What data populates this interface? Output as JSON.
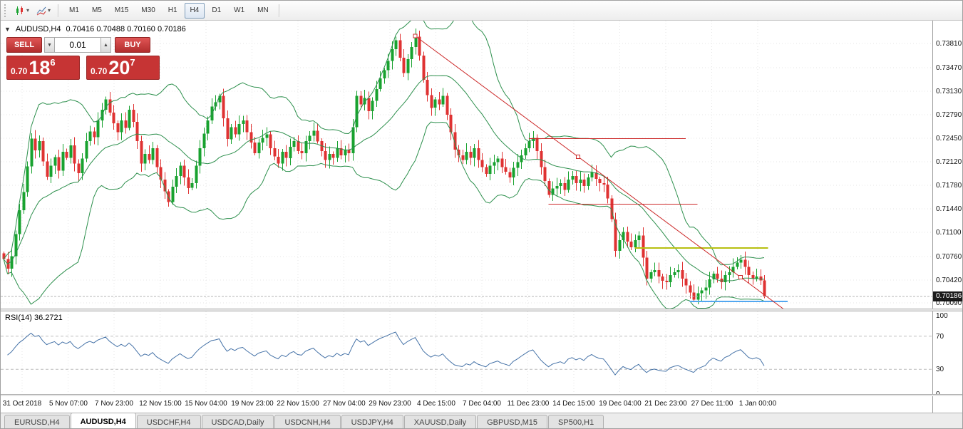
{
  "toolbar": {
    "timeframes": [
      "M1",
      "M5",
      "M15",
      "M30",
      "H1",
      "H4",
      "D1",
      "W1",
      "MN"
    ],
    "active_timeframe": "H4"
  },
  "header": {
    "title": "AUDUSD,H4",
    "ohlc": "0.70416 0.70488 0.70160 0.70186"
  },
  "trade_panel": {
    "sell_label": "SELL",
    "buy_label": "BUY",
    "volume": "0.01",
    "sell_price": {
      "prefix": "0.70",
      "main": "18",
      "sup": "6"
    },
    "buy_price": {
      "prefix": "0.70",
      "main": "20",
      "sup": "7"
    }
  },
  "price_axis": {
    "current_label": "0.70186"
  },
  "rsi": {
    "label": "RSI(14) 36.2721"
  },
  "tabs": [
    {
      "label": "EURUSD,H4",
      "active": false
    },
    {
      "label": "AUDUSD,H4",
      "active": true
    },
    {
      "label": "USDCHF,H4",
      "active": false
    },
    {
      "label": "USDCAD,Daily",
      "active": false
    },
    {
      "label": "USDCNH,H4",
      "active": false
    },
    {
      "label": "USDJPY,H4",
      "active": false
    },
    {
      "label": "XAUUSD,Daily",
      "active": false
    },
    {
      "label": "GBPUSD,M15",
      "active": false
    },
    {
      "label": "SP500,H1",
      "active": false
    }
  ],
  "chart_data": {
    "type": "candlestick",
    "symbol": "AUDUSD",
    "timeframe": "H4",
    "bid": 0.70186,
    "ohlc_last": {
      "open": 0.70416,
      "high": 0.70488,
      "low": 0.7016,
      "close": 0.70186
    },
    "view": {
      "price_top": 0.7414,
      "price_bottom": 0.7001
    },
    "y_ticks": [
      0.7381,
      0.7347,
      0.7313,
      0.7279,
      0.7245,
      0.7212,
      0.7178,
      0.7144,
      0.711,
      0.7076,
      0.7042,
      0.7009
    ],
    "x_labels": [
      "31 Oct 2018",
      "5 Nov 07:00",
      "7 Nov 23:00",
      "12 Nov 15:00",
      "15 Nov 04:00",
      "19 Nov 23:00",
      "22 Nov 15:00",
      "27 Nov 04:00",
      "29 Nov 23:00",
      "4 Dec 15:00",
      "7 Dec 04:00",
      "11 Dec 23:00",
      "14 Dec 15:00",
      "19 Dec 04:00",
      "21 Dec 23:00",
      "27 Dec 11:00",
      "1 Jan 00:00"
    ],
    "closes": [
      0.7072,
      0.7058,
      0.7076,
      0.7108,
      0.7142,
      0.7168,
      0.7205,
      0.7245,
      0.7228,
      0.7241,
      0.7212,
      0.719,
      0.7206,
      0.7218,
      0.7199,
      0.7226,
      0.7217,
      0.7235,
      0.7209,
      0.7195,
      0.7216,
      0.7241,
      0.7255,
      0.7247,
      0.7271,
      0.7286,
      0.7301,
      0.7282,
      0.7267,
      0.7254,
      0.7271,
      0.726,
      0.7286,
      0.7269,
      0.7241,
      0.7209,
      0.7223,
      0.7214,
      0.7231,
      0.7204,
      0.7186,
      0.7169,
      0.7154,
      0.7176,
      0.7191,
      0.7206,
      0.7189,
      0.7174,
      0.7181,
      0.7206,
      0.7231,
      0.7252,
      0.7271,
      0.7291,
      0.7297,
      0.7306,
      0.7274,
      0.7244,
      0.7261,
      0.7251,
      0.7266,
      0.7271,
      0.7254,
      0.7239,
      0.7224,
      0.7239,
      0.7246,
      0.7251,
      0.7231,
      0.7219,
      0.7209,
      0.7226,
      0.7217,
      0.7233,
      0.7241,
      0.7227,
      0.7224,
      0.7241,
      0.7249,
      0.7256,
      0.7241,
      0.7227,
      0.7214,
      0.7223,
      0.7217,
      0.7231,
      0.7221,
      0.7229,
      0.7224,
      0.7261,
      0.7306,
      0.7294,
      0.7303,
      0.7284,
      0.7299,
      0.7316,
      0.7331,
      0.7343,
      0.7356,
      0.7373,
      0.7386,
      0.7361,
      0.7339,
      0.7359,
      0.7376,
      0.7391,
      0.7364,
      0.7329,
      0.7307,
      0.7289,
      0.7301,
      0.7294,
      0.7306,
      0.7279,
      0.7254,
      0.7229,
      0.7221,
      0.7214,
      0.7226,
      0.7217,
      0.7231,
      0.7214,
      0.7204,
      0.7194,
      0.7206,
      0.7211,
      0.7216,
      0.7204,
      0.7197,
      0.7189,
      0.7203,
      0.7211,
      0.7221,
      0.7231,
      0.7241,
      0.7246,
      0.7227,
      0.7204,
      0.7184,
      0.7164,
      0.7173,
      0.7177,
      0.7181,
      0.7171,
      0.7186,
      0.7191,
      0.7181,
      0.7186,
      0.7177,
      0.7189,
      0.7196,
      0.7187,
      0.7181,
      0.7179,
      0.7159,
      0.7129,
      0.7084,
      0.7099,
      0.7111,
      0.7097,
      0.7089,
      0.7099,
      0.7106,
      0.7074,
      0.7044,
      0.7053,
      0.7056,
      0.7047,
      0.7041,
      0.7039,
      0.7049,
      0.7053,
      0.7056,
      0.7044,
      0.7034,
      0.7024,
      0.7014,
      0.7023,
      0.7027,
      0.7031,
      0.7043,
      0.7051,
      0.7044,
      0.7039,
      0.7049,
      0.7053,
      0.7061,
      0.7067,
      0.7071,
      0.7061,
      0.7049,
      0.7044,
      0.7047,
      0.70416,
      0.70186
    ],
    "bollinger": {
      "name": "Bollinger Bands",
      "period": 20,
      "deviation": 2,
      "color": "#2c8f4c"
    },
    "rsi": {
      "name": "RSI",
      "period": 14,
      "value": 36.2721,
      "color": "#4572a7",
      "levels": [
        100,
        70,
        30,
        0
      ],
      "dashed_levels": [
        70,
        30
      ]
    },
    "objects": {
      "trendline": {
        "from": {
          "index": 105,
          "price": 0.7392
        },
        "to": {
          "index": 188,
          "price": 0.7046
        },
        "ray_to_index": 200,
        "color": "#cc2929"
      },
      "hlines": [
        {
          "price": 0.7245,
          "from_index": 134,
          "to_index": 174,
          "color": "#cc2929",
          "width": 1
        },
        {
          "price": 0.7151,
          "from_index": 139,
          "to_index": 177,
          "color": "#cc2929",
          "width": 1
        },
        {
          "price": 0.7088,
          "from_index": 161,
          "to_index": 195,
          "color": "#b7bf10",
          "width": 2
        },
        {
          "price": 0.7011,
          "from_index": 175,
          "to_index": 200,
          "color": "#52a7f0",
          "width": 2
        }
      ]
    },
    "colors": {
      "up": "#18a22f",
      "down": "#df3232",
      "grid": "#e5e5e5",
      "bid_line": "#b5b5b5"
    }
  }
}
